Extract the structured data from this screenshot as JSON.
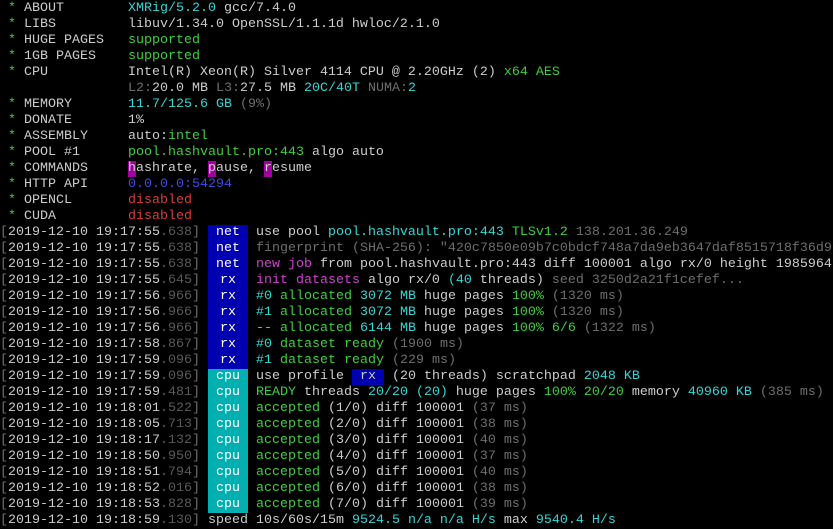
{
  "colors": {
    "w": "#cccccc",
    "c": "#33d6d6",
    "g": "#3ccf3c",
    "gr": "#6e6e6e",
    "d": "#5a5a5a",
    "b": "#3f48e8",
    "m": "#d13fd1",
    "r": "#d83c3c",
    "bg_net": "#0000b0",
    "bg_rx": "#0000b0",
    "bg_cpu": "#00b0b0",
    "bg_cmd": "#a000a0"
  },
  "lines": [
    {
      "s": [
        [
          " * ",
          "g"
        ],
        [
          "ABOUT        ",
          "w"
        ],
        [
          "XMRig/5.2.0",
          "c"
        ],
        [
          " gcc/7.4.0",
          "w"
        ]
      ]
    },
    {
      "s": [
        [
          " * ",
          "g"
        ],
        [
          "LIBS         ",
          "w"
        ],
        [
          "libuv/1.34.0 OpenSSL/1.1.1d hwloc/2.1.0",
          "w"
        ]
      ]
    },
    {
      "s": [
        [
          " * ",
          "g"
        ],
        [
          "HUGE PAGES   ",
          "w"
        ],
        [
          "supported",
          "g"
        ]
      ]
    },
    {
      "s": [
        [
          " * ",
          "g"
        ],
        [
          "1GB PAGES    ",
          "w"
        ],
        [
          "supported",
          "g"
        ]
      ]
    },
    {
      "s": [
        [
          " * ",
          "g"
        ],
        [
          "CPU          ",
          "w"
        ],
        [
          "Intel(R) Xeon(R) Silver 4114 CPU @ 2.20GHz (2) ",
          "w"
        ],
        [
          "x64 AES",
          "g"
        ]
      ]
    },
    {
      "s": [
        [
          "                ",
          "w"
        ],
        [
          "L2:",
          "gr"
        ],
        [
          "20.0 MB ",
          "w"
        ],
        [
          "L3:",
          "gr"
        ],
        [
          "27.5 MB ",
          "w"
        ],
        [
          "20C/40T",
          "c"
        ],
        [
          " ",
          "w"
        ],
        [
          "NUMA:",
          "gr"
        ],
        [
          "2",
          "c"
        ]
      ]
    },
    {
      "s": [
        [
          " * ",
          "g"
        ],
        [
          "MEMORY       ",
          "w"
        ],
        [
          "11.7/125.6 GB",
          "c"
        ],
        [
          " (9%)",
          "gr"
        ]
      ]
    },
    {
      "s": [
        [
          " * ",
          "g"
        ],
        [
          "DONATE       ",
          "w"
        ],
        [
          "1%",
          "w"
        ]
      ]
    },
    {
      "s": [
        [
          " * ",
          "g"
        ],
        [
          "ASSEMBLY     ",
          "w"
        ],
        [
          "auto:",
          "w"
        ],
        [
          "intel",
          "g"
        ]
      ]
    },
    {
      "s": [
        [
          " * ",
          "g"
        ],
        [
          "POOL #1      ",
          "w"
        ],
        [
          "pool.hashvault.pro:443",
          "g"
        ],
        [
          " algo auto",
          "w"
        ]
      ]
    },
    {
      "s": [
        [
          " * ",
          "g"
        ],
        [
          "COMMANDS     ",
          "w"
        ],
        [
          "h",
          "w",
          "bg_cmd"
        ],
        [
          "ashrate, ",
          "w"
        ],
        [
          "p",
          "w",
          "bg_cmd"
        ],
        [
          "ause, ",
          "w"
        ],
        [
          "r",
          "w",
          "bg_cmd"
        ],
        [
          "esume",
          "w"
        ]
      ]
    },
    {
      "s": [
        [
          " * ",
          "g"
        ],
        [
          "HTTP API     ",
          "w"
        ],
        [
          "0.0.0.0:54294",
          "b"
        ]
      ]
    },
    {
      "s": [
        [
          " * ",
          "g"
        ],
        [
          "OPENCL       ",
          "w"
        ],
        [
          "disabled",
          "r"
        ]
      ]
    },
    {
      "s": [
        [
          " * ",
          "g"
        ],
        [
          "CUDA         ",
          "w"
        ],
        [
          "disabled",
          "r"
        ]
      ]
    },
    {
      "ts": "2019-12-10 19:17:55",
      "ms": ".638",
      "tag": "net",
      "s": [
        [
          "use pool ",
          "w"
        ],
        [
          "pool.hashvault.pro:443",
          "c"
        ],
        [
          " TLSv1.2",
          "g"
        ],
        [
          " 138.201.36.249",
          "gr"
        ]
      ]
    },
    {
      "ts": "2019-12-10 19:17:55",
      "ms": ".638",
      "tag": "net",
      "s": [
        [
          "fingerprint (SHA-256): \"420c7850e09b7c0bdcf748a7da9eb3647daf8515718f36d9",
          "gr"
        ]
      ]
    },
    {
      "ts": "2019-12-10 19:17:55",
      "ms": ".638",
      "tag": "net",
      "s": [
        [
          "new job",
          "m"
        ],
        [
          " from pool.hashvault.pro:443 diff 100001 algo rx/0 height 1985964",
          "w"
        ]
      ]
    },
    {
      "ts": "2019-12-10 19:17:55",
      "ms": ".645",
      "tag": "rx",
      "s": [
        [
          "init datasets",
          "m"
        ],
        [
          " algo rx/0 ",
          "w"
        ],
        [
          "(40",
          "c"
        ],
        [
          " threads)",
          "w"
        ],
        [
          " seed 3250d2a21f1cefef...",
          "gr"
        ]
      ]
    },
    {
      "ts": "2019-12-10 19:17:56",
      "ms": ".966",
      "tag": "rx",
      "s": [
        [
          "#0",
          "c"
        ],
        [
          " allocated",
          "g"
        ],
        [
          " 3072 MB",
          "c"
        ],
        [
          " huge pages ",
          "w"
        ],
        [
          "100%",
          "g"
        ],
        [
          " (1320 ms)",
          "gr"
        ]
      ]
    },
    {
      "ts": "2019-12-10 19:17:56",
      "ms": ".966",
      "tag": "rx",
      "s": [
        [
          "#1",
          "c"
        ],
        [
          " allocated",
          "g"
        ],
        [
          " 3072 MB",
          "c"
        ],
        [
          " huge pages ",
          "w"
        ],
        [
          "100%",
          "g"
        ],
        [
          " (1320 ms)",
          "gr"
        ]
      ]
    },
    {
      "ts": "2019-12-10 19:17:56",
      "ms": ".966",
      "tag": "rx",
      "s": [
        [
          "--",
          "c"
        ],
        [
          " allocated",
          "g"
        ],
        [
          " 6144 MB",
          "c"
        ],
        [
          " huge pages ",
          "w"
        ],
        [
          "100% 6/6",
          "g"
        ],
        [
          " (1322 ms)",
          "gr"
        ]
      ]
    },
    {
      "ts": "2019-12-10 19:17:58",
      "ms": ".867",
      "tag": "rx",
      "s": [
        [
          "#0",
          "c"
        ],
        [
          " dataset ready",
          "g"
        ],
        [
          " (1900 ms)",
          "gr"
        ]
      ]
    },
    {
      "ts": "2019-12-10 19:17:59",
      "ms": ".096",
      "tag": "rx",
      "s": [
        [
          "#1",
          "c"
        ],
        [
          " dataset ready",
          "g"
        ],
        [
          " (229 ms)",
          "gr"
        ]
      ]
    },
    {
      "ts": "2019-12-10 19:17:59",
      "ms": ".096",
      "tag": "cpu",
      "s": [
        [
          "use profile ",
          "w"
        ],
        [
          " rx ",
          "w",
          "bg_rx"
        ],
        [
          " (20 threads) scratchpad ",
          "w"
        ],
        [
          "2048 KB",
          "c"
        ]
      ]
    },
    {
      "ts": "2019-12-10 19:17:59",
      "ms": ".481",
      "tag": "cpu",
      "s": [
        [
          "READY",
          "g"
        ],
        [
          " threads ",
          "w"
        ],
        [
          "20/20 (20)",
          "c"
        ],
        [
          " huge pages ",
          "w"
        ],
        [
          "100% 20/20",
          "g"
        ],
        [
          " memory ",
          "w"
        ],
        [
          "40960 KB",
          "c"
        ],
        [
          " (385 ms)",
          "gr"
        ]
      ]
    },
    {
      "ts": "2019-12-10 19:18:01",
      "ms": ".522",
      "tag": "cpu",
      "s": [
        [
          "accepted",
          "g"
        ],
        [
          " (1/0) diff 100001",
          "w"
        ],
        [
          " (37 ms)",
          "gr"
        ]
      ]
    },
    {
      "ts": "2019-12-10 19:18:05",
      "ms": ".713",
      "tag": "cpu",
      "s": [
        [
          "accepted",
          "g"
        ],
        [
          " (2/0) diff 100001",
          "w"
        ],
        [
          " (38 ms)",
          "gr"
        ]
      ]
    },
    {
      "ts": "2019-12-10 19:18:17",
      "ms": ".132",
      "tag": "cpu",
      "s": [
        [
          "accepted",
          "g"
        ],
        [
          " (3/0) diff 100001",
          "w"
        ],
        [
          " (40 ms)",
          "gr"
        ]
      ]
    },
    {
      "ts": "2019-12-10 19:18:50",
      "ms": ".950",
      "tag": "cpu",
      "s": [
        [
          "accepted",
          "g"
        ],
        [
          " (4/0) diff 100001",
          "w"
        ],
        [
          " (37 ms)",
          "gr"
        ]
      ]
    },
    {
      "ts": "2019-12-10 19:18:51",
      "ms": ".794",
      "tag": "cpu",
      "s": [
        [
          "accepted",
          "g"
        ],
        [
          " (5/0) diff 100001",
          "w"
        ],
        [
          " (40 ms)",
          "gr"
        ]
      ]
    },
    {
      "ts": "2019-12-10 19:18:52",
      "ms": ".016",
      "tag": "cpu",
      "s": [
        [
          "accepted",
          "g"
        ],
        [
          " (6/0) diff 100001",
          "w"
        ],
        [
          " (38 ms)",
          "gr"
        ]
      ]
    },
    {
      "ts": "2019-12-10 19:18:53",
      "ms": ".828",
      "tag": "cpu",
      "s": [
        [
          "accepted",
          "g"
        ],
        [
          " (7/0) diff 100001",
          "w"
        ],
        [
          " (39 ms)",
          "gr"
        ]
      ]
    },
    {
      "ts": "2019-12-10 19:18:59",
      "ms": ".130",
      "s": [
        [
          "speed",
          "w"
        ],
        [
          " 10s/60s/15m ",
          "w"
        ],
        [
          "9524.5 n/a n/a H/s",
          "c"
        ],
        [
          " max ",
          "w"
        ],
        [
          "9540.4 H/s",
          "c"
        ]
      ]
    }
  ]
}
